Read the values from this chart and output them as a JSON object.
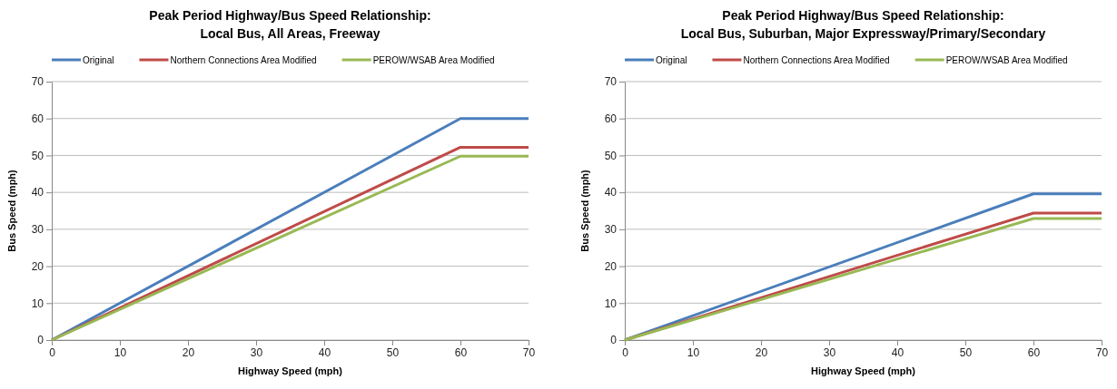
{
  "chart_data": [
    {
      "type": "line",
      "title": "Peak Period Highway/Bus Speed Relationship:\nLocal Bus, All Areas, Freeway",
      "xlabel": "Highway Speed (mph)",
      "ylabel": "Bus Speed (mph)",
      "x": [
        0,
        60,
        70
      ],
      "xlim": [
        0,
        70
      ],
      "xticks": [
        0,
        10,
        20,
        30,
        40,
        50,
        60,
        70
      ],
      "ylim": [
        0,
        70
      ],
      "yticks": [
        0,
        10,
        20,
        30,
        40,
        50,
        60,
        70
      ],
      "grid": "y",
      "legend": "top",
      "series": [
        {
          "name": "Original",
          "color": "#4a7ebb",
          "values": [
            0,
            60,
            60
          ]
        },
        {
          "name": "Northern Connections Area Modified",
          "color": "#be4b48",
          "values": [
            0,
            52.2,
            52.2
          ]
        },
        {
          "name": "PEROW/WSAB Area Modified",
          "color": "#98b954",
          "values": [
            0,
            49.8,
            49.8
          ]
        }
      ]
    },
    {
      "type": "line",
      "title": "Peak Period Highway/Bus Speed Relationship:\nLocal Bus, Suburban, Major Expressway/Primary/Secondary",
      "xlabel": "Highway Speed (mph)",
      "ylabel": "Bus Speed (mph)",
      "x": [
        0,
        60,
        70
      ],
      "xlim": [
        0,
        70
      ],
      "xticks": [
        0,
        10,
        20,
        30,
        40,
        50,
        60,
        70
      ],
      "ylim": [
        0,
        70
      ],
      "yticks": [
        0,
        10,
        20,
        30,
        40,
        50,
        60,
        70
      ],
      "grid": "y",
      "legend": "top",
      "series": [
        {
          "name": "Original",
          "color": "#4a7ebb",
          "values": [
            0,
            39.6,
            39.6
          ]
        },
        {
          "name": "Northern Connections Area Modified",
          "color": "#be4b48",
          "values": [
            0,
            34.4,
            34.4
          ]
        },
        {
          "name": "PEROW/WSAB Area Modified",
          "color": "#98b954",
          "values": [
            0,
            32.9,
            32.9
          ]
        }
      ]
    }
  ]
}
